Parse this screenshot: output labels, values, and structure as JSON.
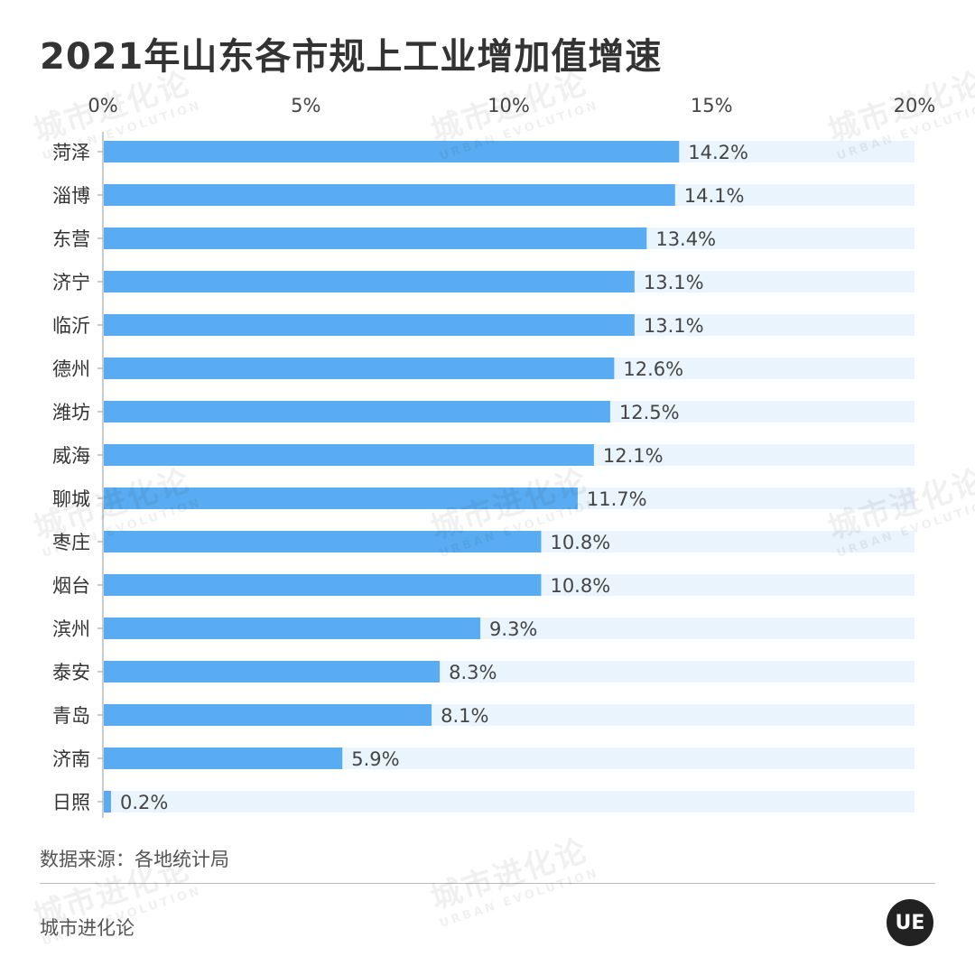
{
  "title": "2021年山东各市规上工业增加值增速",
  "source": "数据来源：各地统计局",
  "brand": "城市进化论",
  "watermark": {
    "cn": "城市进化论",
    "en": "URBAN EVOLUTION"
  },
  "logo_text": "UE",
  "colors": {
    "bar": "#5aacf2",
    "track": "#eaf4fd",
    "text": "#333333"
  },
  "chart_data": {
    "type": "bar",
    "orientation": "horizontal",
    "title": "2021年山东各市规上工业增加值增速",
    "categories": [
      "菏泽",
      "淄博",
      "东营",
      "济宁",
      "临沂",
      "德州",
      "潍坊",
      "威海",
      "聊城",
      "枣庄",
      "烟台",
      "滨州",
      "泰安",
      "青岛",
      "济南",
      "日照"
    ],
    "values": [
      14.2,
      14.1,
      13.4,
      13.1,
      13.1,
      12.6,
      12.5,
      12.1,
      11.7,
      10.8,
      10.8,
      9.3,
      8.3,
      8.1,
      5.9,
      0.2
    ],
    "value_labels": [
      "14.2%",
      "14.1%",
      "13.4%",
      "13.1%",
      "13.1%",
      "12.6%",
      "12.5%",
      "12.1%",
      "11.7%",
      "10.8%",
      "10.8%",
      "9.3%",
      "8.3%",
      "8.1%",
      "5.9%",
      "0.2%"
    ],
    "xlim": [
      0,
      20
    ],
    "xticks": [
      0,
      5,
      10,
      15,
      20
    ],
    "xtick_labels": [
      "0%",
      "5%",
      "10%",
      "15%",
      "20%"
    ],
    "xaxis_position": "top",
    "grid": false,
    "legend": "none"
  }
}
